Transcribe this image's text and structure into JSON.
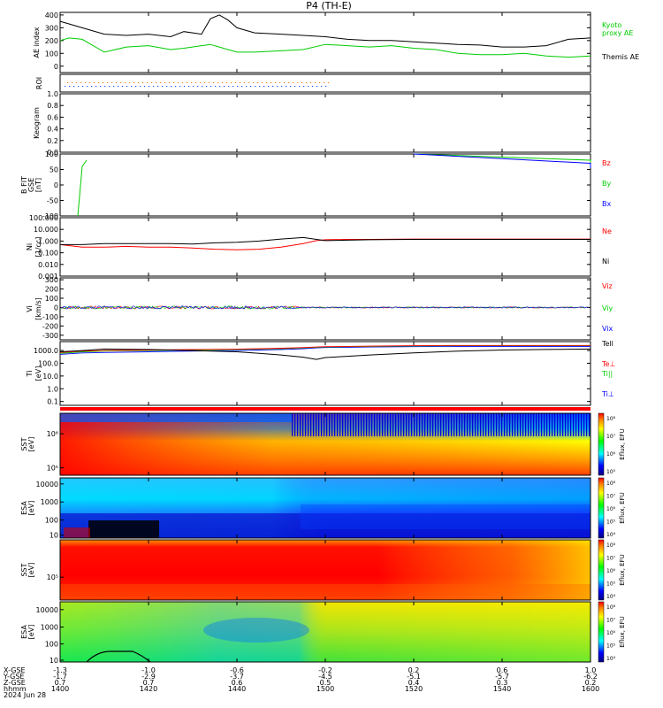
{
  "title": "P4 (TH-E)",
  "footer": {
    "row_labels": [
      "X-GSE",
      "Y-GSE",
      "Z-GSE",
      "hhmm",
      "2024 Jun 28"
    ],
    "times": [
      "1400",
      "1420",
      "1440",
      "1500",
      "1520",
      "1540",
      "1600"
    ],
    "x_gse": [
      "-1.3",
      "-1.0",
      "-0.6",
      "-0.2",
      "0.2",
      "0.6",
      "1.0"
    ],
    "y_gse": [
      "-1.7",
      "-2.9",
      "-3.7",
      "-4.5",
      "-5.1",
      "-5.7",
      "-6.2"
    ],
    "z_gse": [
      "0.7",
      "0.7",
      "0.6",
      "0.5",
      "0.4",
      "0.3",
      "0.2"
    ]
  },
  "colorbar_titles": [
    "Eflux, EFU",
    "Eflux, EFU",
    "Eflux, EFU",
    "Eflux, EFU"
  ],
  "colors": {
    "red": "#ff0000",
    "green": "#00cc00",
    "blue": "#0000ff",
    "black": "#000000"
  },
  "chart_data": [
    {
      "type": "line",
      "panel": "ae",
      "ylabel": "AE index",
      "ylim": [
        -50,
        420
      ],
      "yticks": [
        "0",
        "100",
        "200",
        "300",
        "400"
      ],
      "x": [
        1400,
        1402,
        1405,
        1410,
        1415,
        1420,
        1425,
        1428,
        1432,
        1434,
        1436,
        1438,
        1440,
        1444,
        1450,
        1455,
        1500,
        1505,
        1510,
        1515,
        1520,
        1525,
        1530,
        1535,
        1540,
        1545,
        1550,
        1555,
        1600
      ],
      "series": [
        {
          "name": "Themis AE",
          "color": "#000000",
          "values": [
            350,
            330,
            300,
            250,
            240,
            250,
            230,
            270,
            250,
            370,
            400,
            360,
            300,
            260,
            250,
            240,
            230,
            210,
            200,
            200,
            190,
            180,
            170,
            165,
            150,
            150,
            160,
            210,
            220
          ]
        },
        {
          "name": "Kyoto proxy AE",
          "color": "#00cc00",
          "values": [
            200,
            220,
            210,
            110,
            150,
            160,
            130,
            140,
            160,
            170,
            150,
            130,
            110,
            110,
            120,
            130,
            170,
            160,
            150,
            160,
            140,
            130,
            100,
            90,
            90,
            100,
            80,
            70,
            80
          ]
        }
      ]
    },
    {
      "type": "heatmap",
      "panel": "roi",
      "ylabel": "ROI"
    },
    {
      "type": "heatmap",
      "panel": "keogram",
      "ylabel": "Keogram",
      "yticks": [
        "0.0",
        "0.2",
        "0.4",
        "0.6",
        "0.8",
        "1.0"
      ]
    },
    {
      "type": "line",
      "panel": "b",
      "ylabel": "B FIT GSE [nT]",
      "ylim": [
        -100,
        100
      ],
      "yticks": [
        "-100",
        "-50",
        "0",
        "50",
        "100"
      ],
      "series": [
        {
          "name": "Bz",
          "color": "#ff0000",
          "x": [],
          "values": []
        },
        {
          "name": "By",
          "color": "#00cc00",
          "x": [
            1404,
            1405,
            1406,
            1520,
            1540,
            1560,
            1600
          ],
          "values": [
            -100,
            60,
            80,
            100,
            90,
            80,
            70
          ]
        },
        {
          "name": "Bx",
          "color": "#0000ff",
          "x": [
            1520,
            1540,
            1560,
            1600
          ],
          "values": [
            100,
            85,
            70,
            55
          ]
        }
      ]
    },
    {
      "type": "line",
      "panel": "n",
      "ylabel": "Ni [1/cc]",
      "scale": "log",
      "ylim": [
        0.001,
        100
      ],
      "yticks": [
        "100.000",
        "10.000",
        "1.000",
        "0.100",
        "0.010",
        "0.001"
      ],
      "x": [
        1400,
        1405,
        1410,
        1415,
        1420,
        1425,
        1430,
        1435,
        1440,
        1445,
        1450,
        1455,
        1458,
        1500,
        1505,
        1510,
        1520,
        1530,
        1540,
        1550,
        1600
      ],
      "series": [
        {
          "name": "Ne",
          "color": "#ff0000",
          "values": [
            0.5,
            0.3,
            0.3,
            0.35,
            0.3,
            0.3,
            0.25,
            0.2,
            0.18,
            0.2,
            0.3,
            0.6,
            1.1,
            1.3,
            1.4,
            1.4,
            1.5,
            1.5,
            1.5,
            1.5,
            1.5
          ]
        },
        {
          "name": "Ni",
          "color": "#000000",
          "values": [
            0.5,
            0.5,
            0.6,
            0.6,
            0.6,
            0.6,
            0.55,
            0.7,
            0.8,
            1.0,
            1.5,
            2.0,
            1.4,
            1.1,
            1.2,
            1.3,
            1.4,
            1.4,
            1.4,
            1.4,
            1.4
          ]
        }
      ]
    },
    {
      "type": "line",
      "panel": "v",
      "ylabel": "Vi [km/s]",
      "ylim": [
        -350,
        320
      ],
      "yticks": [
        "300",
        "200",
        "100",
        "0",
        "-100",
        "-200",
        "-300"
      ],
      "series": [
        {
          "name": "Viz",
          "color": "#ff0000",
          "values": [
            0
          ]
        },
        {
          "name": "Viy",
          "color": "#00cc00",
          "values": [
            0
          ]
        },
        {
          "name": "Vix",
          "color": "#0000ff",
          "values": [
            0
          ]
        }
      ]
    },
    {
      "type": "line",
      "panel": "t",
      "ylabel": "Ti [eV]",
      "scale": "log",
      "ylim": [
        0.05,
        5000
      ],
      "yticks": [
        "1000.0",
        "100.0",
        "10.0",
        "1.0",
        "0.1"
      ],
      "x": [
        1400,
        1405,
        1410,
        1420,
        1430,
        1440,
        1445,
        1450,
        1455,
        1458,
        1500,
        1505,
        1510,
        1520,
        1530,
        1540,
        1550,
        1600
      ],
      "series": [
        {
          "name": "Tell",
          "color": "#000000",
          "values": [
            800,
            1000,
            1300,
            1200,
            1000,
            800,
            600,
            450,
            300,
            200,
            280,
            350,
            450,
            650,
            900,
            1100,
            1200,
            1300
          ]
        },
        {
          "name": "Te⊥",
          "color": "#ff0000",
          "values": [
            700,
            900,
            1000,
            1100,
            1200,
            1300,
            1400,
            1500,
            1700,
            1900,
            2000,
            2100,
            2200,
            2400,
            2500,
            2500,
            2500,
            2500
          ]
        },
        {
          "name": "Ti||",
          "color": "#00cc00",
          "values": [
            600,
            800,
            900,
            1000,
            1100,
            1200,
            1300,
            1400,
            1600,
            1800,
            1900,
            2000,
            2100,
            2300,
            2400,
            2400,
            2400,
            2400
          ]
        },
        {
          "name": "Ti⊥",
          "color": "#0000ff",
          "values": [
            500,
            650,
            700,
            800,
            900,
            1000,
            1100,
            1200,
            1400,
            1600,
            1700,
            1800,
            1900,
            2000,
            2100,
            2100,
            2100,
            2100
          ]
        }
      ]
    },
    {
      "type": "heatmap",
      "panel": "sst_e",
      "ylabel": "SST [eV]",
      "yticks": [
        "10⁶",
        "10⁵"
      ]
    },
    {
      "type": "heatmap",
      "panel": "esa_e",
      "ylabel": "ESA [eV]",
      "yticks": [
        "10000",
        "1000",
        "100",
        "10"
      ]
    },
    {
      "type": "heatmap",
      "panel": "sst_i",
      "ylabel": "SST [eV]",
      "yticks": [
        "10⁵"
      ]
    },
    {
      "type": "heatmap",
      "panel": "esa_i",
      "ylabel": "ESA [eV]",
      "yticks": [
        "10000",
        "1000",
        "100",
        "10"
      ]
    }
  ]
}
